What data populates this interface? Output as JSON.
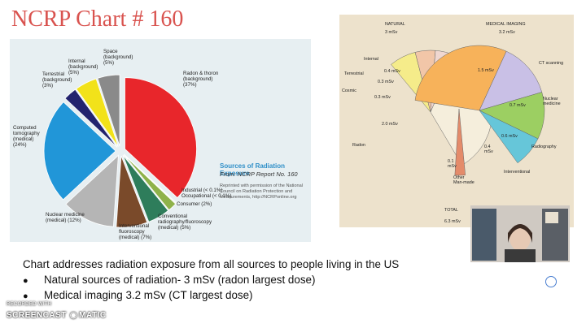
{
  "slide": {
    "title": "NCRP Chart # 160",
    "body_text": "Chart addresses radiation exposure from all sources to people living in the US",
    "bullets": [
      "Natural sources of radiation- 3 mSv (radon largest dose)",
      "Medical imaging 3.2 mSv (CT largest dose)"
    ]
  },
  "left_chart": {
    "panel_title": "Sources of Radiation Exposure",
    "panel_from": "From: NCRP Report No. 160",
    "panel_note": "Reprinted with permission of the National Council on Radiation Protection and Measurements, http://NCRPonline.org",
    "labels": {
      "space": "Space\n(background)\n(5%)",
      "internal": "Internal\n(background)\n(5%)",
      "terrestrial": "Terrestrial\n(background)\n(3%)",
      "radon": "Radon & thoron\n(background)\n(37%)",
      "ct": "Computed\ntomography\n(medical)\n(24%)",
      "industrial": "Industrial (< 0.1%)",
      "occupational": "Occupational (< 0.1%)",
      "consumer": "Consumer (2%)",
      "conventional": "Conventional\nradiography/fluoroscopy\n(medical) (5%)",
      "interventional": "Interventional\nfluoroscopy\n(medical) (7%)",
      "nuclear": "Nuclear medicine\n(medical) (12%)"
    }
  },
  "chart_data": {
    "type": "pie",
    "title": "Sources of Radiation Exposure",
    "slices": [
      {
        "label": "Radon & thoron (background)",
        "value": 37,
        "color": "#e8262b"
      },
      {
        "label": "Industrial",
        "value": 0.1,
        "color": "#1b4f33"
      },
      {
        "label": "Occupational",
        "value": 0.1,
        "color": "#6b8f3c"
      },
      {
        "label": "Consumer",
        "value": 2,
        "color": "#8fb24a"
      },
      {
        "label": "Conventional radiography/fluoroscopy (medical)",
        "value": 5,
        "color": "#2e7d5b"
      },
      {
        "label": "Interventional fluoroscopy (medical)",
        "value": 7,
        "color": "#7a4a2a"
      },
      {
        "label": "Nuclear medicine (medical)",
        "value": 12,
        "color": "#b5b5b5"
      },
      {
        "label": "Computed tomography (medical)",
        "value": 24,
        "color": "#2196d8"
      },
      {
        "label": "Terrestrial (background)",
        "value": 3,
        "color": "#23236e"
      },
      {
        "label": "Internal (background)",
        "value": 5,
        "color": "#f2e21a"
      },
      {
        "label": "Space (background)",
        "value": 5,
        "color": "#8a8a8a"
      }
    ]
  },
  "right_chart": {
    "natural_header": "NATURAL",
    "natural_total": "3 mSv",
    "medical_header": "MEDICAL IMAGING",
    "medical_total": "3.2 mSv",
    "total_label": "TOTAL",
    "total_value": "6.3 mSv",
    "labels": {
      "internal": "Internal",
      "terrestrial": "Terrestrial",
      "cosmic": "Cosmic",
      "radon": "Radon",
      "ct": "CT scanning",
      "nuclear": "Nuclear\nmedicine",
      "radiography": "Radiography",
      "interventional": "Interventional",
      "other": "Other\nMan-made"
    },
    "values": {
      "internal": "0.4 mSv",
      "terrestrial": "0.3 mSv",
      "cosmic": "0.3 mSv",
      "radon": "2.0 mSv",
      "ct": "1.5 mSv",
      "nuclear": "0.7 mSv",
      "radiography": "0.6 mSv",
      "interventional": "0.4\nmSv",
      "other": "0.1\nmSv"
    }
  },
  "watermark": {
    "line1": "RECORDED WITH",
    "line2": "SCREENCAST",
    "line3": "MATIC"
  }
}
